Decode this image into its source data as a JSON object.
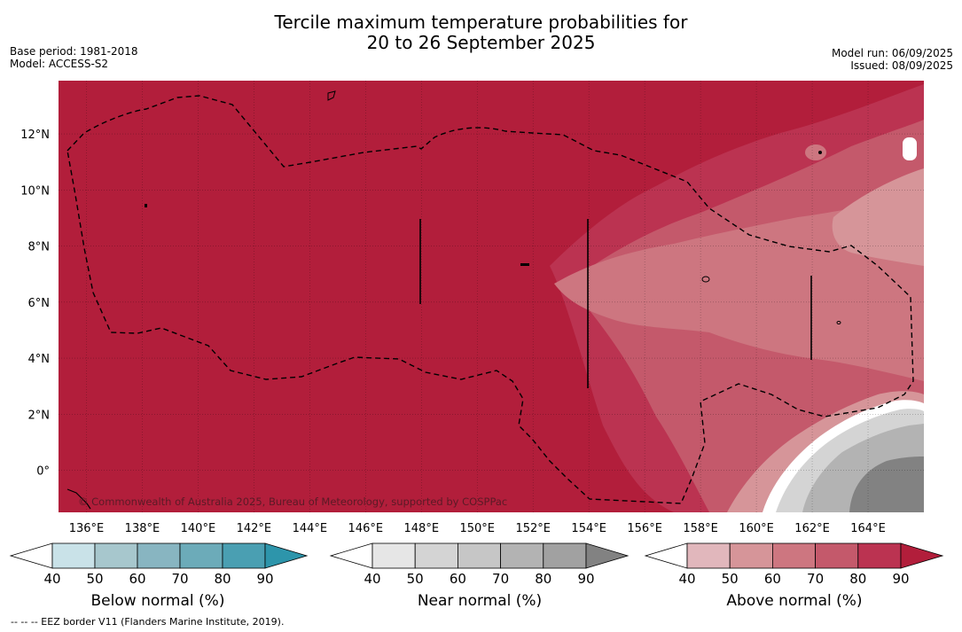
{
  "title_line1": "Tercile maximum temperature probabilities for",
  "title_line2": "20 to 26 September 2025",
  "base_period": "Base period: 1981-2018",
  "model": "Model: ACCESS-S2",
  "model_run": "Model run: 06/09/2025",
  "issued": "Issued: 08/09/2025",
  "copyright": "© Commonwealth of Australia 2025, Bureau of Meteorology, supported by COSPPac",
  "footnote": "--  --  -- EEZ border V11 (Flanders Marine Institute, 2019).",
  "map": {
    "lat_labels": [
      "12°N",
      "10°N",
      "8°N",
      "6°N",
      "4°N",
      "2°N",
      "0°"
    ],
    "lat_values": [
      12,
      10,
      8,
      6,
      4,
      2,
      0
    ],
    "lon_labels": [
      "136°E",
      "138°E",
      "140°E",
      "142°E",
      "144°E",
      "146°E",
      "148°E",
      "150°E",
      "152°E",
      "154°E",
      "156°E",
      "158°E",
      "160°E",
      "162°E",
      "164°E"
    ],
    "lon_values": [
      136,
      138,
      140,
      142,
      144,
      146,
      148,
      150,
      152,
      154,
      156,
      158,
      160,
      162,
      164
    ],
    "lon_range": [
      135,
      166
    ],
    "lat_range": [
      -1.5,
      13.9
    ],
    "dominant_category": "Above normal",
    "dominant_probability_class": ">90%"
  },
  "colorbars": [
    {
      "label": "Below normal (%)",
      "ticks": [
        "40",
        "50",
        "60",
        "70",
        "80",
        "90"
      ],
      "colors": [
        "#c9e2e8",
        "#a7c7cd",
        "#88b5c1",
        "#6cabb9",
        "#4a9fb2",
        "#2d95ab"
      ]
    },
    {
      "label": "Near normal (%)",
      "ticks": [
        "40",
        "50",
        "60",
        "70",
        "80",
        "90"
      ],
      "colors": [
        "#e6e6e6",
        "#d4d4d4",
        "#c6c6c6",
        "#b3b3b3",
        "#a1a1a1",
        "#828282"
      ]
    },
    {
      "label": "Above normal (%)",
      "ticks": [
        "40",
        "50",
        "60",
        "70",
        "80",
        "90"
      ],
      "colors": [
        "#e1b7bc",
        "#d69599",
        "#cd7680",
        "#c4596b",
        "#bb3351",
        "#b21e3b"
      ]
    }
  ]
}
